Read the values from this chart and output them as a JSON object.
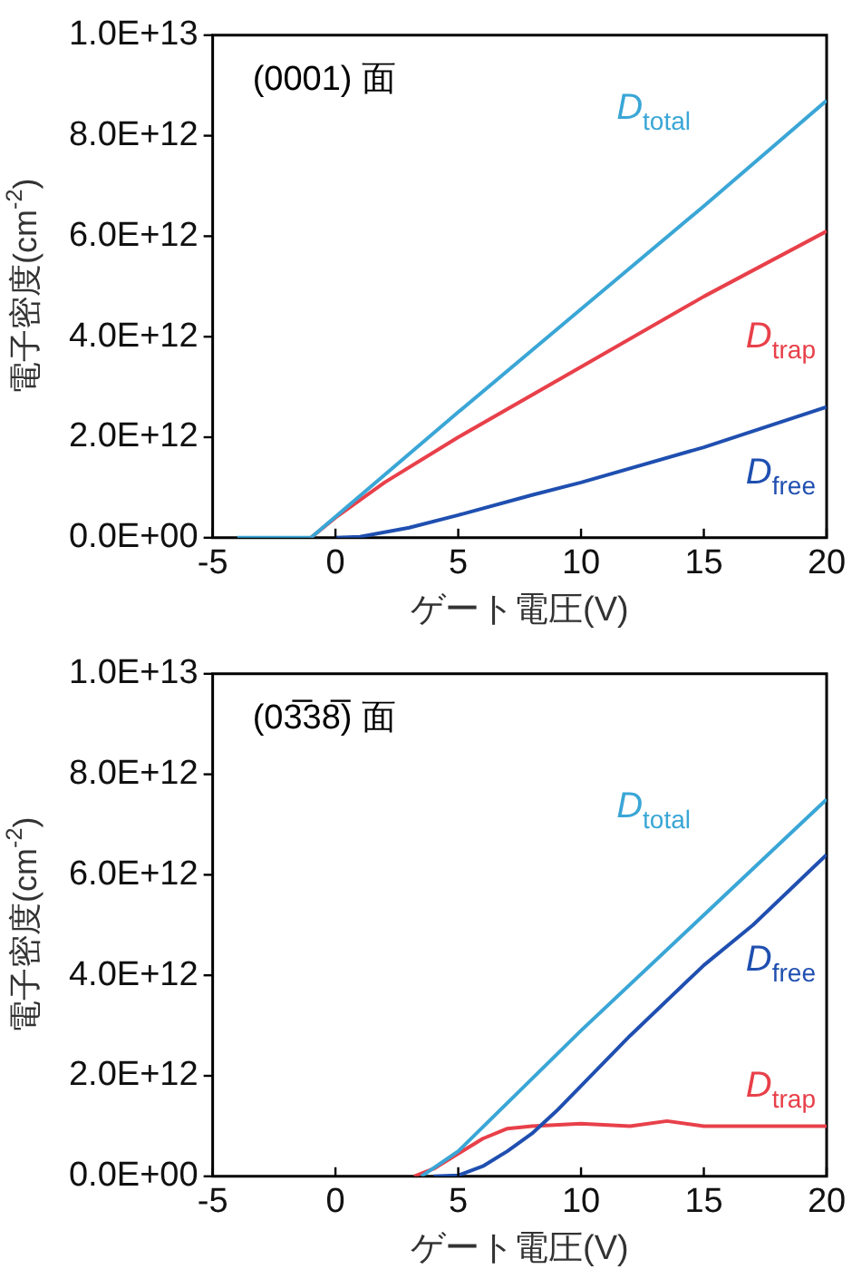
{
  "chart_data": [
    {
      "type": "line",
      "ylabel": "電子密度(cm$^{-2}$)",
      "xlabel": "ゲート電圧(V)",
      "annotations": [
        "(0001) 面"
      ],
      "grid": false,
      "legend": false,
      "marker": "none",
      "line_style": "solid",
      "xlim": [
        -5,
        20
      ],
      "xticks": [
        -5,
        0,
        5,
        10,
        15,
        20
      ],
      "ylim": [
        0,
        10000000000000.0
      ],
      "yticks": [
        {
          "value": 0,
          "label": "0.0E+00"
        },
        {
          "value": 2000000000000.0,
          "label": "2.0E+12"
        },
        {
          "value": 4000000000000.0,
          "label": "4.0E+12"
        },
        {
          "value": 6000000000000.0,
          "label": "6.0E+12"
        },
        {
          "value": 8000000000000.0,
          "label": "8.0E+12"
        },
        {
          "value": 10000000000000.0,
          "label": "1.0E+13"
        }
      ],
      "series": [
        {
          "name": "D$_{total}$",
          "color": "#3aa6d6",
          "x": [
            -4,
            -1,
            5,
            10,
            15,
            20
          ],
          "values": [
            0,
            0,
            2500000000000.0,
            4550000000000.0,
            6600000000000.0,
            8700000000000.0
          ]
        },
        {
          "name": "D$_{trap}$",
          "color": "#e8404a",
          "x": [
            -1,
            0,
            2,
            5,
            10,
            15,
            20
          ],
          "values": [
            0,
            400000000000.0,
            1100000000000.0,
            2000000000000.0,
            3400000000000.0,
            4800000000000.0,
            6100000000000.0
          ]
        },
        {
          "name": "D$_{free}$",
          "color": "#1f4fb0",
          "x": [
            0,
            1,
            3,
            5,
            8,
            10,
            15,
            20
          ],
          "values": [
            0,
            20000000000.0,
            200000000000.0,
            450000000000.0,
            850000000000.0,
            1100000000000.0,
            1800000000000.0,
            2600000000000.0
          ]
        }
      ]
    },
    {
      "type": "line",
      "ylabel": "電子密度(cm$^{-2}$)",
      "xlabel": "ゲート電圧(V)",
      "annotations": [
        "(03̅38̅) 面"
      ],
      "grid": false,
      "legend": false,
      "marker": "none",
      "line_style": "solid",
      "xlim": [
        -5,
        20
      ],
      "xticks": [
        -5,
        0,
        5,
        10,
        15,
        20
      ],
      "ylim": [
        0,
        10000000000000.0
      ],
      "yticks": [
        {
          "value": 0,
          "label": "0.0E+00"
        },
        {
          "value": 2000000000000.0,
          "label": "2.0E+12"
        },
        {
          "value": 4000000000000.0,
          "label": "4.0E+12"
        },
        {
          "value": 6000000000000.0,
          "label": "6.0E+12"
        },
        {
          "value": 8000000000000.0,
          "label": "8.0E+12"
        },
        {
          "value": 10000000000000.0,
          "label": "1.0E+13"
        }
      ],
      "series": [
        {
          "name": "D$_{total}$",
          "color": "#3aa6d6",
          "x": [
            3.5,
            5,
            10,
            15,
            20
          ],
          "values": [
            0,
            500000000000.0,
            2900000000000.0,
            5200000000000.0,
            7500000000000.0
          ]
        },
        {
          "name": "D$_{free}$",
          "color": "#1f4fb0",
          "x": [
            4,
            5,
            6,
            7,
            8,
            9,
            10,
            12,
            15,
            17,
            20
          ],
          "values": [
            0,
            20000000000.0,
            200000000000.0,
            500000000000.0,
            850000000000.0,
            1300000000000.0,
            1800000000000.0,
            2800000000000.0,
            4200000000000.0,
            5000000000000.0,
            6400000000000.0
          ]
        },
        {
          "name": "D$_{trap}$",
          "color": "#e8404a",
          "x": [
            3.2,
            4,
            5,
            6,
            7,
            8,
            10,
            12,
            13.5,
            15,
            18,
            20
          ],
          "values": [
            0,
            150000000000.0,
            450000000000.0,
            750000000000.0,
            950000000000.0,
            1000000000000.0,
            1050000000000.0,
            1000000000000.0,
            1100000000000.0,
            1000000000000.0,
            1000000000000.0,
            1000000000000.0
          ]
        }
      ]
    }
  ]
}
